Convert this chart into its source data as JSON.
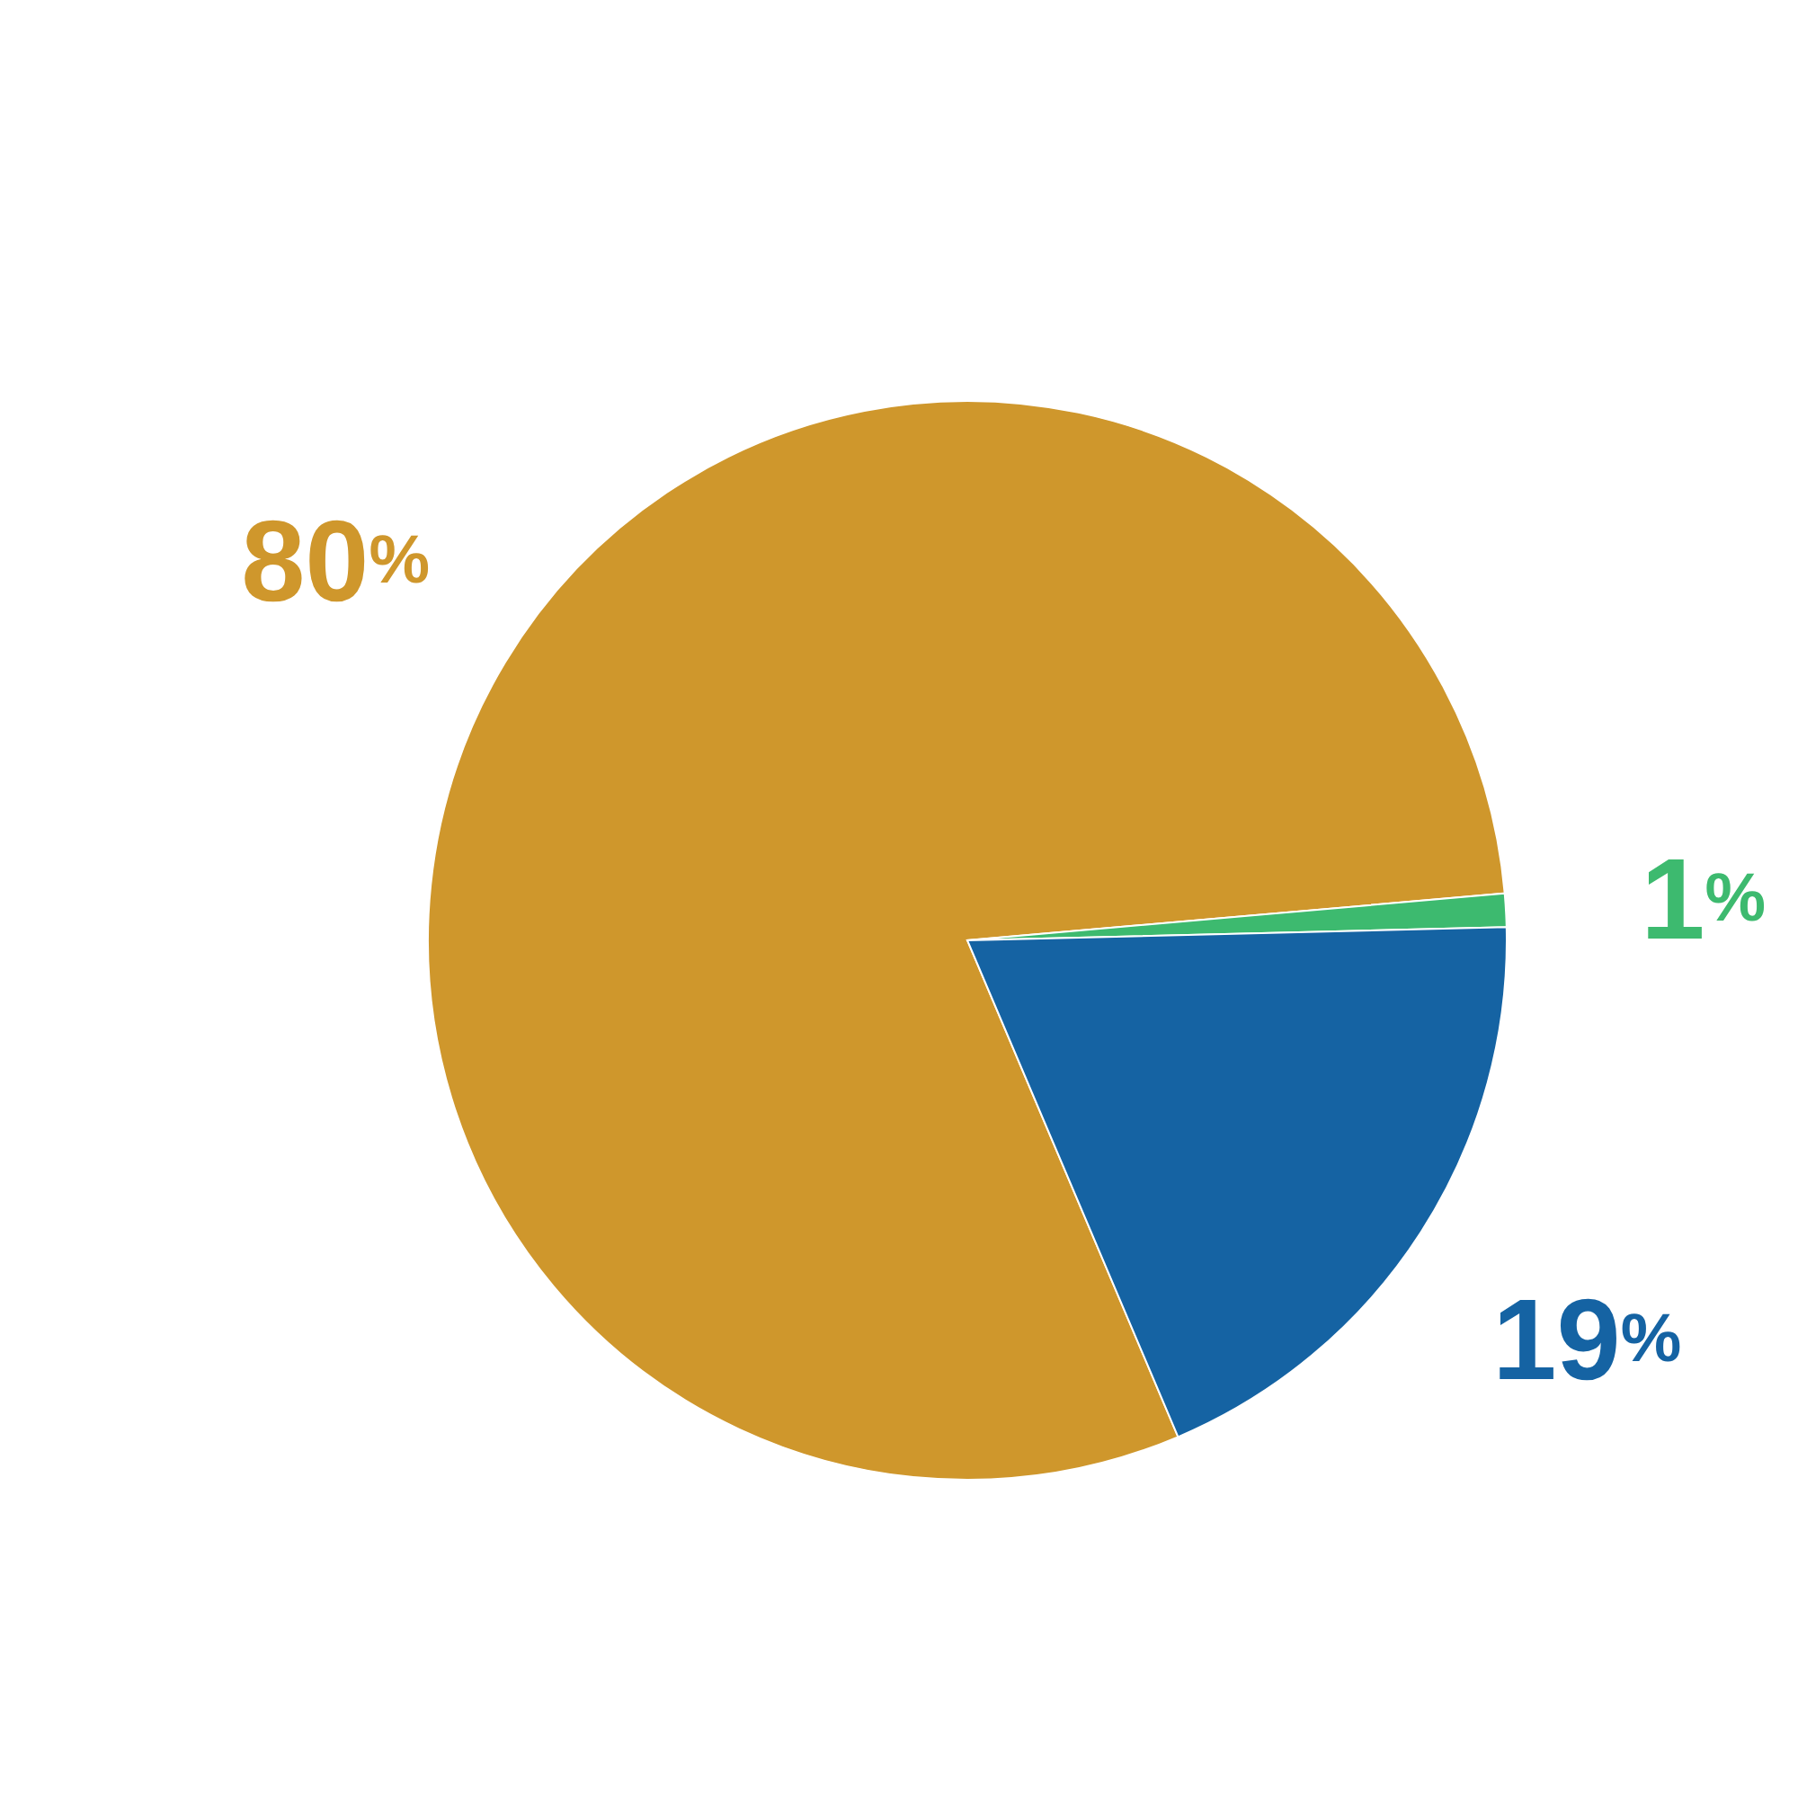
{
  "chart_data": {
    "type": "pie",
    "categories": [
      null,
      null,
      null
    ],
    "values": [
      80,
      1,
      19
    ],
    "colors": [
      "#cf972c",
      "#3dba6f",
      "#1563a3"
    ],
    "value_labels": [
      "80%",
      "1%",
      "19%"
    ]
  }
}
